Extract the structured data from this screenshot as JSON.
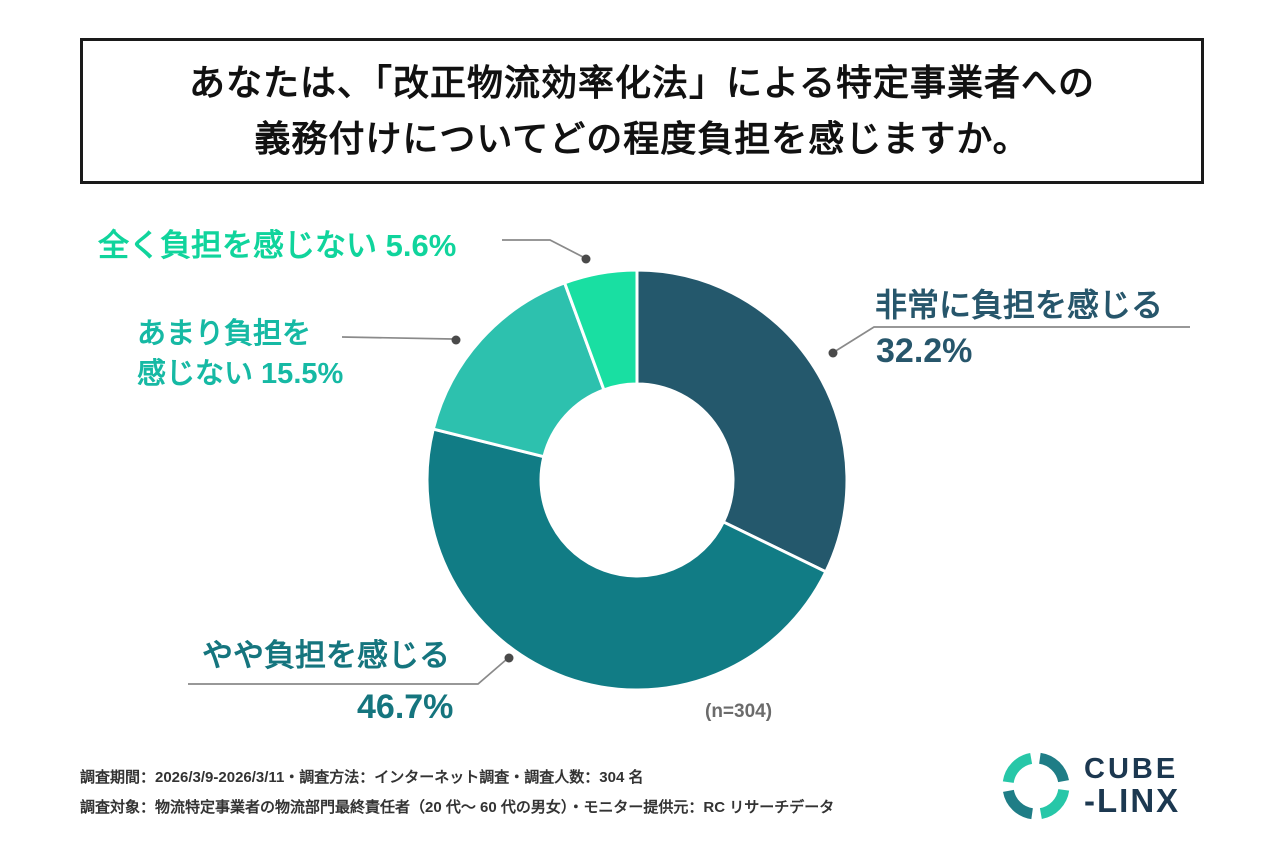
{
  "title": {
    "line1": "あなたは、「改正物流効率化法」による特定事業者への",
    "line2": "義務付けについてどの程度負担を感じますか。"
  },
  "chart_data": {
    "type": "pie",
    "subtype": "donut",
    "title": "あなたは、「改正物流効率化法」による特定事業者への義務付けについてどの程度負担を感じますか。",
    "categories": [
      "非常に負担を感じる",
      "やや負担を感じる",
      "あまり負担を感じない",
      "全く負担を感じない"
    ],
    "values": [
      32.2,
      46.7,
      15.5,
      5.6
    ],
    "colors": [
      "#24586c",
      "#117c85",
      "#2dc1ae",
      "#19dfa2"
    ],
    "start_angle_deg": 0,
    "direction": "clockwise",
    "sample_size": 304,
    "legend_position": "callout-labels"
  },
  "labels": {
    "none": "全く負担を感じない  5.6%",
    "notmuch_line1": "あまり負担を",
    "notmuch_line2": "感じない  15.5%",
    "very_name": "非常に負担を感じる",
    "very_pct": "32.2%",
    "somewhat_name": "やや負担を感じる",
    "somewhat_pct": "46.7%"
  },
  "sample_label": "(n=304)",
  "footer": {
    "line1": "調査期間：2026/3/9-2026/3/11・調査方法：インターネット調査・調査人数：304 名",
    "line2": "調査対象：物流特定事業者の物流部門最終責任者（20 代〜 60 代の男女）・モニター提供元：RC リサーチデータ"
  },
  "logo": {
    "line1": "CUBE",
    "line2": "-LINX",
    "ring_colors": [
      "#1f7d86",
      "#27c7a8"
    ]
  }
}
